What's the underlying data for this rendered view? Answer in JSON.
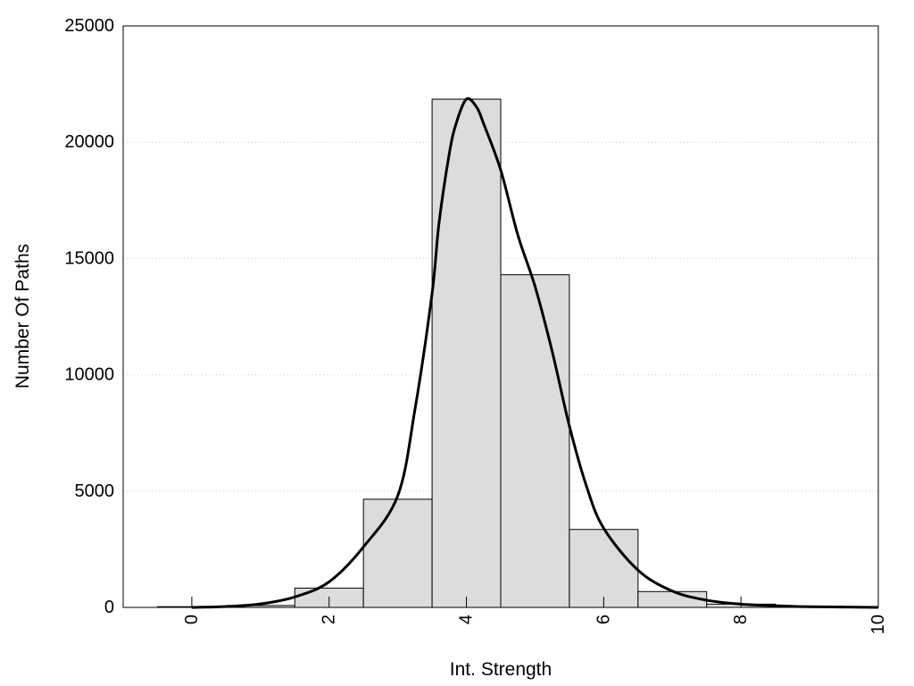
{
  "chart_data": {
    "type": "bar",
    "title": "",
    "xlabel": "Int. Strength",
    "ylabel": "Number Of Paths",
    "xlim": [
      -1,
      10
    ],
    "ylim": [
      0,
      25000
    ],
    "xticks": [
      0,
      2,
      4,
      6,
      8,
      10
    ],
    "yticks": [
      0,
      5000,
      10000,
      15000,
      20000,
      25000
    ],
    "grid": "horizontal-dotted",
    "legend": "none",
    "bar_width": 1,
    "bars": {
      "x": [
        0,
        1,
        2,
        3,
        4,
        5,
        6,
        7,
        8,
        9,
        10
      ],
      "values": [
        30,
        80,
        830,
        4650,
        21850,
        14300,
        3350,
        680,
        140,
        50,
        20
      ]
    },
    "curve": {
      "x": [
        0,
        0.5,
        1,
        1.5,
        2,
        2.5,
        3,
        3.25,
        3.5,
        3.6,
        3.75,
        3.85,
        4,
        4.15,
        4.25,
        4.5,
        4.75,
        5,
        5.25,
        5.5,
        5.75,
        6,
        6.5,
        7,
        7.5,
        8,
        8.5,
        9,
        9.5,
        10
      ],
      "y": [
        0,
        40,
        150,
        450,
        1100,
        2600,
        4800,
        8500,
        13500,
        16500,
        19500,
        20800,
        21850,
        21500,
        20800,
        18800,
        16000,
        13800,
        11000,
        7800,
        5200,
        3400,
        1600,
        700,
        310,
        140,
        70,
        30,
        15,
        0
      ]
    },
    "colors": {
      "bar_fill": "#dcdcdc",
      "bar_stroke": "#000000",
      "curve": "#000000",
      "grid": "#cccccc"
    }
  }
}
